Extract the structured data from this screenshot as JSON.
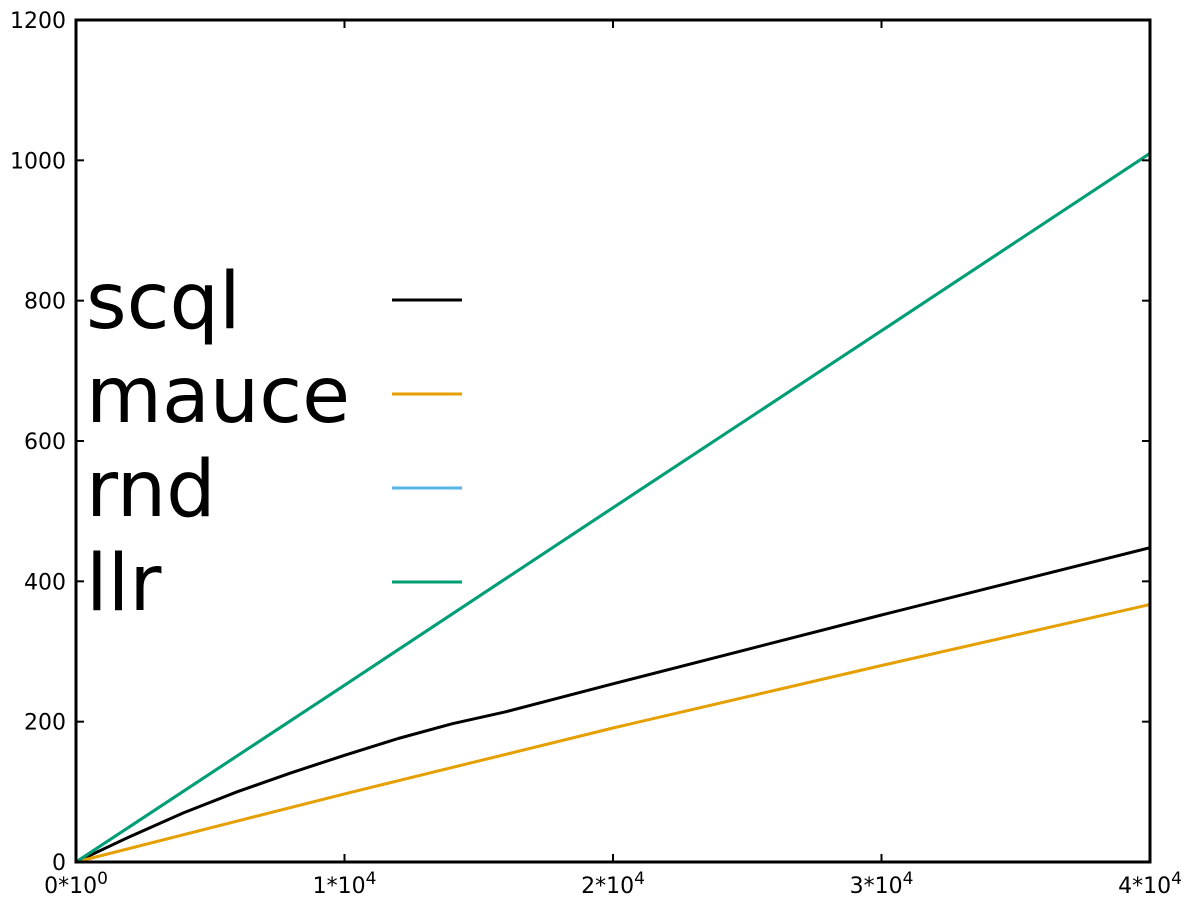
{
  "chart_data": {
    "type": "line",
    "title": "",
    "xlabel": "",
    "ylabel": "",
    "xlim": [
      0,
      40000
    ],
    "ylim": [
      0,
      1200
    ],
    "grid": false,
    "legend_placement": "left",
    "x_ticks": [
      {
        "value": 0,
        "mantissa": "0",
        "exponent": "0"
      },
      {
        "value": 10000,
        "mantissa": "1",
        "exponent": "4"
      },
      {
        "value": 20000,
        "mantissa": "2",
        "exponent": "4"
      },
      {
        "value": 30000,
        "mantissa": "3",
        "exponent": "4"
      },
      {
        "value": 40000,
        "mantissa": "4",
        "exponent": "4"
      }
    ],
    "y_ticks": [
      {
        "value": 0,
        "label": "0"
      },
      {
        "value": 200,
        "label": "200"
      },
      {
        "value": 400,
        "label": "400"
      },
      {
        "value": 600,
        "label": "600"
      },
      {
        "value": 800,
        "label": "800"
      },
      {
        "value": 1000,
        "label": "1000"
      },
      {
        "value": 1200,
        "label": "1200"
      }
    ],
    "series": [
      {
        "name": "scql",
        "color": "#000000",
        "x": [
          0,
          2000,
          4000,
          6000,
          8000,
          10000,
          12000,
          14000,
          16000,
          20000,
          25000,
          30000,
          35000,
          40000
        ],
        "y": [
          0,
          36,
          70,
          100,
          127,
          152,
          176,
          197,
          214,
          254,
          303,
          352,
          400,
          448
        ]
      },
      {
        "name": "mauce",
        "color": "#e69f00",
        "x": [
          0,
          10000,
          20000,
          30000,
          40000
        ],
        "y": [
          0,
          97,
          191,
          280,
          367
        ]
      },
      {
        "name": "rnd",
        "color": "#56b4e9",
        "x": [
          0,
          10000,
          20000,
          30000,
          40000
        ],
        "y": [
          0,
          252,
          505,
          757,
          1010
        ]
      },
      {
        "name": "llr",
        "color": "#009e73",
        "x": [
          0,
          10000,
          20000,
          30000,
          40000
        ],
        "y": [
          0,
          252,
          505,
          757,
          1010
        ]
      }
    ]
  }
}
